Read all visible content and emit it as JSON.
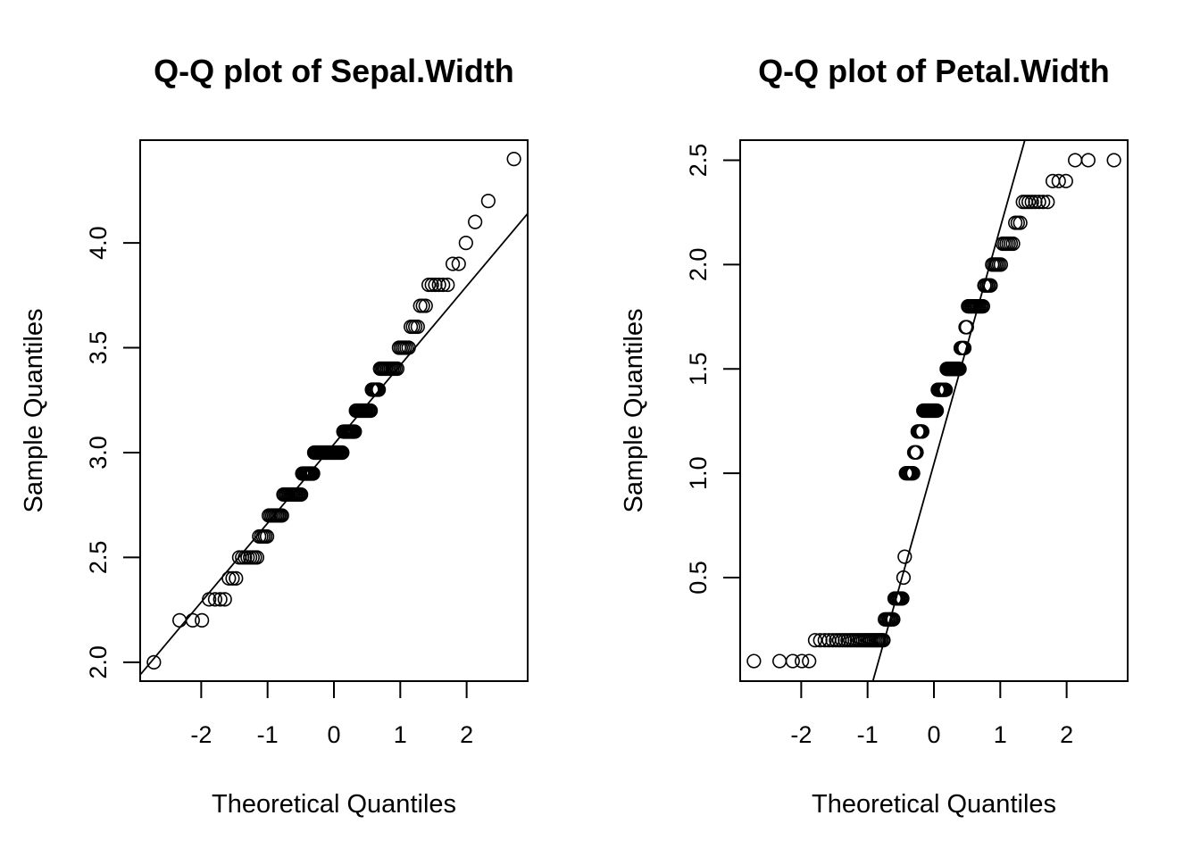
{
  "chart_data": [
    {
      "type": "scatter",
      "title": "Q-Q plot of Sepal.Width",
      "xlabel": "Theoretical Quantiles",
      "ylabel": "Sample Quantiles",
      "xlim": [
        -2.92,
        2.92
      ],
      "ylim": [
        1.91,
        4.49
      ],
      "xticks": [
        -2,
        -1,
        0,
        1,
        2
      ],
      "xtick_labels": [
        "-2",
        "-1",
        "0",
        "1",
        "2"
      ],
      "yticks": [
        2.0,
        2.5,
        3.0,
        3.5,
        4.0
      ],
      "ytick_labels": [
        "2.0",
        "2.5",
        "3.0",
        "3.5",
        "4.0"
      ],
      "reference_line": {
        "x": [
          -2.92,
          2.92
        ],
        "y": [
          1.94,
          4.14
        ]
      },
      "sorted_values": [
        2.0,
        2.2,
        2.2,
        2.2,
        2.3,
        2.3,
        2.3,
        2.3,
        2.4,
        2.4,
        2.4,
        2.5,
        2.5,
        2.5,
        2.5,
        2.5,
        2.5,
        2.5,
        2.5,
        2.6,
        2.6,
        2.6,
        2.6,
        2.6,
        2.7,
        2.7,
        2.7,
        2.7,
        2.7,
        2.7,
        2.7,
        2.7,
        2.7,
        2.8,
        2.8,
        2.8,
        2.8,
        2.8,
        2.8,
        2.8,
        2.8,
        2.8,
        2.8,
        2.8,
        2.8,
        2.8,
        2.8,
        2.9,
        2.9,
        2.9,
        2.9,
        2.9,
        2.9,
        2.9,
        2.9,
        2.9,
        2.9,
        3.0,
        3.0,
        3.0,
        3.0,
        3.0,
        3.0,
        3.0,
        3.0,
        3.0,
        3.0,
        3.0,
        3.0,
        3.0,
        3.0,
        3.0,
        3.0,
        3.0,
        3.0,
        3.0,
        3.0,
        3.0,
        3.0,
        3.0,
        3.0,
        3.0,
        3.0,
        3.1,
        3.1,
        3.1,
        3.1,
        3.1,
        3.1,
        3.1,
        3.1,
        3.1,
        3.1,
        3.1,
        3.2,
        3.2,
        3.2,
        3.2,
        3.2,
        3.2,
        3.2,
        3.2,
        3.2,
        3.2,
        3.2,
        3.2,
        3.2,
        3.3,
        3.3,
        3.3,
        3.3,
        3.3,
        3.3,
        3.4,
        3.4,
        3.4,
        3.4,
        3.4,
        3.4,
        3.4,
        3.4,
        3.4,
        3.4,
        3.4,
        3.4,
        3.5,
        3.5,
        3.5,
        3.5,
        3.5,
        3.5,
        3.6,
        3.6,
        3.6,
        3.6,
        3.7,
        3.7,
        3.7,
        3.8,
        3.8,
        3.8,
        3.8,
        3.8,
        3.8,
        3.9,
        3.9,
        4.0,
        4.1,
        4.2,
        4.4
      ]
    },
    {
      "type": "scatter",
      "title": "Q-Q plot of Petal.Width",
      "xlabel": "Theoretical Quantiles",
      "ylabel": "Sample Quantiles",
      "xlim": [
        -2.92,
        2.92
      ],
      "ylim": [
        0.004,
        2.596
      ],
      "xticks": [
        -2,
        -1,
        0,
        1,
        2
      ],
      "xtick_labels": [
        "-2",
        "-1",
        "0",
        "1",
        "2"
      ],
      "yticks": [
        0.5,
        1.0,
        1.5,
        2.0,
        2.5
      ],
      "ytick_labels": [
        "0.5",
        "1.0",
        "1.5",
        "2.0",
        "2.5"
      ],
      "reference_line": {
        "x": [
          -0.92,
          1.37
        ],
        "y": [
          0.004,
          2.596
        ]
      },
      "sorted_values": [
        0.1,
        0.1,
        0.1,
        0.1,
        0.1,
        0.2,
        0.2,
        0.2,
        0.2,
        0.2,
        0.2,
        0.2,
        0.2,
        0.2,
        0.2,
        0.2,
        0.2,
        0.2,
        0.2,
        0.2,
        0.2,
        0.2,
        0.2,
        0.2,
        0.2,
        0.2,
        0.2,
        0.2,
        0.2,
        0.2,
        0.2,
        0.2,
        0.2,
        0.2,
        0.3,
        0.3,
        0.3,
        0.3,
        0.3,
        0.3,
        0.3,
        0.4,
        0.4,
        0.4,
        0.4,
        0.4,
        0.4,
        0.4,
        0.5,
        0.6,
        1.0,
        1.0,
        1.0,
        1.0,
        1.0,
        1.0,
        1.0,
        1.1,
        1.1,
        1.1,
        1.2,
        1.2,
        1.2,
        1.2,
        1.2,
        1.3,
        1.3,
        1.3,
        1.3,
        1.3,
        1.3,
        1.3,
        1.3,
        1.3,
        1.3,
        1.3,
        1.3,
        1.3,
        1.4,
        1.4,
        1.4,
        1.4,
        1.4,
        1.4,
        1.4,
        1.4,
        1.5,
        1.5,
        1.5,
        1.5,
        1.5,
        1.5,
        1.5,
        1.5,
        1.5,
        1.5,
        1.5,
        1.5,
        1.6,
        1.6,
        1.6,
        1.6,
        1.7,
        1.7,
        1.8,
        1.8,
        1.8,
        1.8,
        1.8,
        1.8,
        1.8,
        1.8,
        1.8,
        1.8,
        1.8,
        1.8,
        1.9,
        1.9,
        1.9,
        1.9,
        1.9,
        2.0,
        2.0,
        2.0,
        2.0,
        2.0,
        2.0,
        2.1,
        2.1,
        2.1,
        2.1,
        2.1,
        2.1,
        2.2,
        2.2,
        2.2,
        2.3,
        2.3,
        2.3,
        2.3,
        2.3,
        2.3,
        2.3,
        2.3,
        2.4,
        2.4,
        2.4,
        2.5,
        2.5,
        2.5
      ]
    }
  ]
}
